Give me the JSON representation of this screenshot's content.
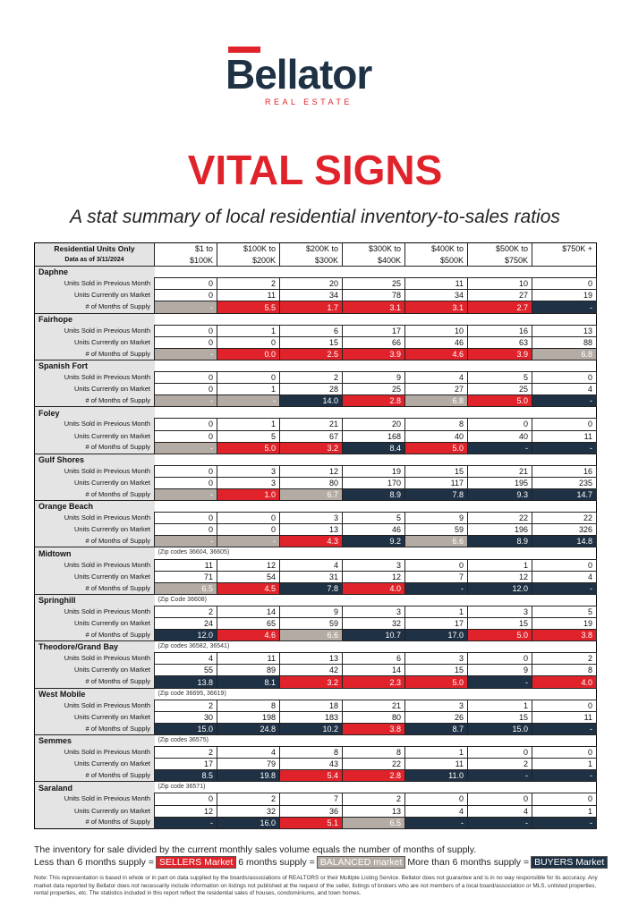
{
  "logo": {
    "name": "Bellator",
    "tagline": "REAL ESTATE"
  },
  "title": "VITAL SIGNS",
  "subtitle": "A stat summary of local residential inventory-to-sales ratios",
  "table": {
    "corner": [
      "Residential Units Only",
      "Data as of 3/11/2024"
    ],
    "columns": [
      [
        "$1 to",
        "$100K"
      ],
      [
        "$100K to",
        "$200K"
      ],
      [
        "$200K to",
        "$300K"
      ],
      [
        "$300K to",
        "$400K"
      ],
      [
        "$400K to",
        "$500K"
      ],
      [
        "$500K to",
        "$750K"
      ],
      [
        "$750K +"
      ]
    ],
    "row_labels": [
      "Units Sold in Previous Month",
      "Units Currently on Market",
      "# of Months of Supply"
    ],
    "areas": [
      {
        "name": "Daphne",
        "sold": [
          0,
          2,
          20,
          25,
          11,
          10,
          0
        ],
        "market": [
          0,
          11,
          34,
          78,
          34,
          27,
          19
        ],
        "supply": [
          "-",
          "5.5",
          "1.7",
          "3.1",
          "3.1",
          "2.7",
          "-"
        ],
        "supply_colors": [
          "#b4aca4",
          "#e0232b",
          "#e0232b",
          "#e0232b",
          "#e0232b",
          "#e0232b",
          "#1f3144"
        ]
      },
      {
        "name": "Fairhope",
        "sold": [
          0,
          1,
          6,
          17,
          10,
          16,
          13
        ],
        "market": [
          0,
          0,
          15,
          66,
          46,
          63,
          88
        ],
        "supply": [
          "-",
          "0.0",
          "2.5",
          "3.9",
          "4.6",
          "3.9",
          "6.8"
        ],
        "supply_colors": [
          "#b4aca4",
          "#e0232b",
          "#e0232b",
          "#e0232b",
          "#e0232b",
          "#e0232b",
          "#b4aca4"
        ]
      },
      {
        "name": "Spanish Fort",
        "sold": [
          0,
          0,
          2,
          9,
          4,
          5,
          0
        ],
        "market": [
          0,
          1,
          28,
          25,
          27,
          25,
          4
        ],
        "supply": [
          "-",
          "-",
          "14.0",
          "2.8",
          "6.8",
          "5.0",
          "-"
        ],
        "supply_colors": [
          "#b4aca4",
          "#b4aca4",
          "#1f3144",
          "#e0232b",
          "#b4aca4",
          "#e0232b",
          "#1f3144"
        ]
      },
      {
        "name": "Foley",
        "sold": [
          0,
          1,
          21,
          20,
          8,
          0,
          0
        ],
        "market": [
          0,
          5,
          67,
          168,
          40,
          40,
          11
        ],
        "supply": [
          "-",
          "5.0",
          "3.2",
          "8.4",
          "5.0",
          "-",
          "-"
        ],
        "supply_colors": [
          "#b4aca4",
          "#e0232b",
          "#e0232b",
          "#1f3144",
          "#e0232b",
          "#1f3144",
          "#1f3144"
        ]
      },
      {
        "name": "Gulf Shores",
        "sold": [
          0,
          3,
          12,
          19,
          15,
          21,
          16
        ],
        "market": [
          0,
          3,
          80,
          170,
          117,
          195,
          235
        ],
        "supply": [
          "-",
          "1.0",
          "6.7",
          "8.9",
          "7.8",
          "9.3",
          "14.7"
        ],
        "supply_colors": [
          "#b4aca4",
          "#e0232b",
          "#b4aca4",
          "#1f3144",
          "#1f3144",
          "#1f3144",
          "#1f3144"
        ]
      },
      {
        "name": "Orange Beach",
        "sold": [
          0,
          0,
          3,
          5,
          9,
          22,
          22
        ],
        "market": [
          0,
          0,
          13,
          46,
          59,
          196,
          326
        ],
        "supply": [
          "-",
          "-",
          "4.3",
          "9.2",
          "6.6",
          "8.9",
          "14.8"
        ],
        "supply_colors": [
          "#b4aca4",
          "#b4aca4",
          "#e0232b",
          "#1f3144",
          "#b4aca4",
          "#1f3144",
          "#1f3144"
        ]
      },
      {
        "name": "Midtown",
        "note": "(Zip codes 36604, 36605)",
        "sold": [
          11,
          12,
          4,
          3,
          0,
          1,
          0
        ],
        "market": [
          71,
          54,
          31,
          12,
          7,
          12,
          4
        ],
        "supply": [
          "6.5",
          "4.5",
          "7.8",
          "4.0",
          "-",
          "12.0",
          "-"
        ],
        "supply_colors": [
          "#b4aca4",
          "#e0232b",
          "#1f3144",
          "#e0232b",
          "#1f3144",
          "#1f3144",
          "#1f3144"
        ]
      },
      {
        "name": "Springhill",
        "note": "(Zip Code 36608)",
        "sold": [
          2,
          14,
          9,
          3,
          1,
          3,
          5
        ],
        "market": [
          24,
          65,
          59,
          32,
          17,
          15,
          19
        ],
        "supply": [
          "12.0",
          "4.6",
          "6.6",
          "10.7",
          "17.0",
          "5.0",
          "3.8"
        ],
        "supply_colors": [
          "#1f3144",
          "#e0232b",
          "#b4aca4",
          "#1f3144",
          "#1f3144",
          "#e0232b",
          "#e0232b"
        ]
      },
      {
        "name": "Theodore/Grand Bay",
        "note": "(Zip codes 36582, 36541)",
        "sold": [
          4,
          11,
          13,
          6,
          3,
          0,
          2
        ],
        "market": [
          55,
          89,
          42,
          14,
          15,
          9,
          8
        ],
        "supply": [
          "13.8",
          "8.1",
          "3.2",
          "2.3",
          "5.0",
          "-",
          "4.0"
        ],
        "supply_colors": [
          "#1f3144",
          "#1f3144",
          "#e0232b",
          "#e0232b",
          "#e0232b",
          "#1f3144",
          "#e0232b"
        ]
      },
      {
        "name": "West Mobile",
        "note": "(Zip code 36695, 36619)",
        "sold": [
          2,
          8,
          18,
          21,
          3,
          1,
          0
        ],
        "market": [
          30,
          198,
          183,
          80,
          26,
          15,
          11
        ],
        "supply": [
          "15.0",
          "24.8",
          "10.2",
          "3.8",
          "8.7",
          "15.0",
          "-"
        ],
        "supply_colors": [
          "#1f3144",
          "#1f3144",
          "#1f3144",
          "#e0232b",
          "#1f3144",
          "#1f3144",
          "#1f3144"
        ]
      },
      {
        "name": "Semmes",
        "note": "(Zip codes 36575)",
        "sold": [
          2,
          4,
          8,
          8,
          1,
          0,
          0
        ],
        "market": [
          17,
          79,
          43,
          22,
          11,
          2,
          1
        ],
        "supply": [
          "8.5",
          "19.8",
          "5.4",
          "2.8",
          "11.0",
          "-",
          "-"
        ],
        "supply_colors": [
          "#1f3144",
          "#1f3144",
          "#e0232b",
          "#e0232b",
          "#1f3144",
          "#1f3144",
          "#1f3144"
        ]
      },
      {
        "name": "Saraland",
        "note": "(Zip code 36571)",
        "sold": [
          0,
          2,
          7,
          2,
          0,
          0,
          0
        ],
        "market": [
          12,
          32,
          36,
          13,
          4,
          4,
          1
        ],
        "supply": [
          "-",
          "16.0",
          "5.1",
          "6.5",
          "-",
          "-",
          "-"
        ],
        "supply_colors": [
          "#1f3144",
          "#1f3144",
          "#e0232b",
          "#b4aca4",
          "#1f3144",
          "#1f3144",
          "#1f3144"
        ]
      }
    ]
  },
  "footer": {
    "explanation": "The inventory for sale divided by the current monthly sales volume equals the number of months of supply.",
    "legend": [
      {
        "text": "Less than 6 months supply =",
        "label": "SELLERS Market",
        "color": "#e0232b"
      },
      {
        "text": "6 months supply =",
        "label": "BALANCED market",
        "color": "#b4aca4"
      },
      {
        "text": "More than 6 months supply =",
        "label": "BUYERS Market",
        "color": "#1f3144"
      }
    ],
    "note": "Note: This representation is based in whole or in part on data supplied by the boards/associations of REALTORS or their Multiple Listing Service. Bellator does not guarantee and is in no way responsible for its accuracy. Any market data reported by Bellator does not necessarily include information on listings not published at the request of the seller, listings of brokers who are not members of a local board/association or MLS, unlisted properties, rental properties, etc. The statistics included in this report reflect the residential sales of houses, condominiums, and town homes."
  }
}
